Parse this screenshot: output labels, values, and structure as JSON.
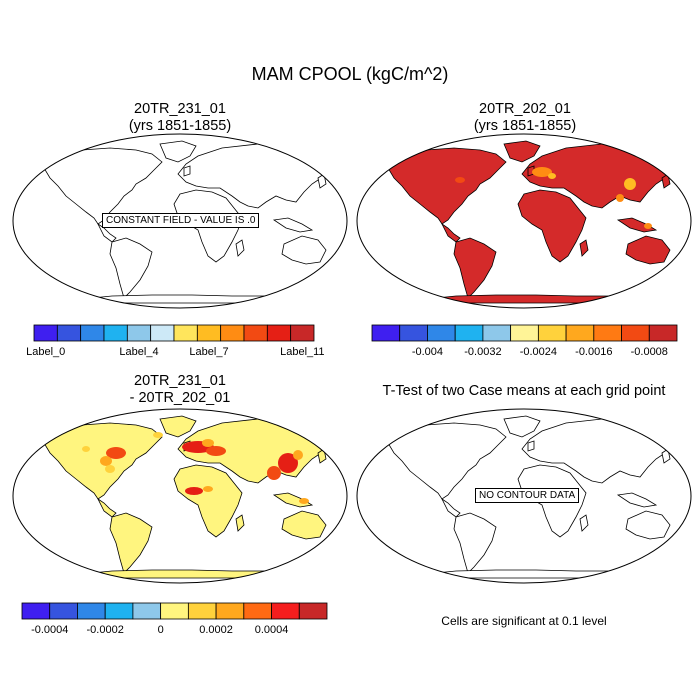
{
  "figure": {
    "title": "MAM CPOOL (kgC/m^2)"
  },
  "panels": [
    {
      "id": "p1",
      "title_line1": "20TR_231_01",
      "title_line2": "(yrs 1851-1855)",
      "land_fill": "#ffffff",
      "overlay_text": "CONSTANT FIELD - VALUE IS .0",
      "colorbar": {
        "colors": [
          "#3f1ff0",
          "#3654df",
          "#2f87e8",
          "#1fb2f0",
          "#8ec8ea",
          "#cde9f7",
          "#ffe55c",
          "#ffbc22",
          "#ff8c13",
          "#f24a13",
          "#e51f15",
          "#c82828"
        ],
        "labels": [
          "Label_0",
          "Label_4",
          "Label_7",
          "Label_11"
        ]
      }
    },
    {
      "id": "p2",
      "title_line1": "20TR_202_01",
      "title_line2": "(yrs 1851-1855)",
      "land_fill": "#d42a2a",
      "colorbar": {
        "colors": [
          "#3f1ff0",
          "#3654df",
          "#2f87e8",
          "#1fb2f0",
          "#8ec8ea",
          "#fff497",
          "#ffd23c",
          "#ffa81e",
          "#ff7a13",
          "#f24a13",
          "#c82828"
        ],
        "labels": [
          "-0.004",
          "-0.0032",
          "-0.0024",
          "-0.0016",
          "-0.0008"
        ]
      }
    },
    {
      "id": "p3",
      "title_line1": "20TR_231_01",
      "title_line2": "- 20TR_202_01",
      "land_fill": "#fff57f",
      "colorbar": {
        "colors": [
          "#3f1ff0",
          "#3654df",
          "#2f87e8",
          "#1fb2f0",
          "#8ec8ea",
          "#fff57f",
          "#ffd23c",
          "#ffa81e",
          "#ff6a13",
          "#f51e1e",
          "#c82828"
        ],
        "labels": [
          "-0.0004",
          "-0.0002",
          "0",
          "0.0002",
          "0.0004"
        ]
      }
    },
    {
      "id": "p4",
      "title_line1": "T-Test of two Case means at each grid point",
      "land_fill": "#ffffff",
      "overlay_text": "NO CONTOUR DATA",
      "note": "Cells are significant at 0.1 level"
    }
  ]
}
